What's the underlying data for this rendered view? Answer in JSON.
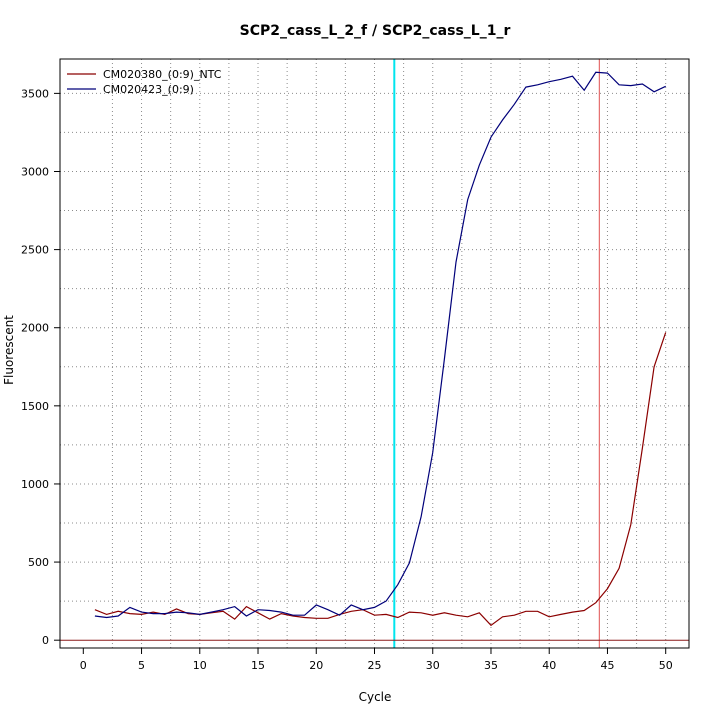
{
  "chart_data": {
    "type": "line",
    "title": "SCP2_cass_L_2_f / SCP2_cass_L_1_r",
    "xlabel": "Cycle",
    "ylabel": "Fluorescent",
    "xlim": [
      -2,
      52
    ],
    "ylim": [
      -50,
      3720
    ],
    "x_ticks": [
      0,
      5,
      10,
      15,
      20,
      25,
      30,
      35,
      40,
      45,
      50
    ],
    "y_ticks": [
      0,
      500,
      1000,
      1500,
      2000,
      2500,
      3000,
      3500
    ],
    "grid": true,
    "legend_position": "top-left",
    "threshold_y": 0,
    "threshold_color": "#8b1a1a",
    "series": [
      {
        "name": "CM020380_(0:9)_NTC",
        "color": "#8b0000",
        "ct": 44.3,
        "x": [
          1,
          2,
          3,
          4,
          5,
          6,
          7,
          8,
          9,
          10,
          11,
          12,
          13,
          14,
          15,
          16,
          17,
          18,
          19,
          20,
          21,
          22,
          23,
          24,
          25,
          26,
          27,
          28,
          29,
          30,
          31,
          32,
          33,
          34,
          35,
          36,
          37,
          38,
          39,
          40,
          41,
          42,
          43,
          44,
          45,
          46,
          47,
          48,
          49,
          50
        ],
        "y": [
          195,
          165,
          185,
          170,
          165,
          180,
          165,
          200,
          170,
          165,
          175,
          185,
          135,
          215,
          175,
          135,
          170,
          155,
          145,
          140,
          140,
          165,
          185,
          195,
          160,
          165,
          145,
          180,
          175,
          160,
          175,
          160,
          150,
          175,
          95,
          150,
          160,
          185,
          185,
          150,
          165,
          180,
          190,
          240,
          330,
          460,
          740,
          1230,
          1750,
          1970
        ]
      },
      {
        "name": "CM020423_(0:9)",
        "color": "#00007a",
        "ct": 26.7,
        "x": [
          1,
          2,
          3,
          4,
          5,
          6,
          7,
          8,
          9,
          10,
          11,
          12,
          13,
          14,
          15,
          16,
          17,
          18,
          19,
          20,
          21,
          22,
          23,
          24,
          25,
          26,
          27,
          28,
          29,
          30,
          31,
          32,
          33,
          34,
          35,
          36,
          37,
          38,
          39,
          40,
          41,
          42,
          43,
          44,
          45,
          46,
          47,
          48,
          49,
          50
        ],
        "y": [
          155,
          145,
          155,
          210,
          180,
          170,
          170,
          180,
          175,
          165,
          180,
          195,
          215,
          155,
          195,
          190,
          180,
          160,
          160,
          225,
          195,
          160,
          225,
          195,
          210,
          250,
          355,
          495,
          790,
          1200,
          1800,
          2420,
          2820,
          3040,
          3220,
          3330,
          3430,
          3540,
          3555,
          3575,
          3590,
          3610,
          3520,
          3635,
          3630,
          3555,
          3550,
          3560,
          3510,
          3545
        ]
      }
    ]
  }
}
